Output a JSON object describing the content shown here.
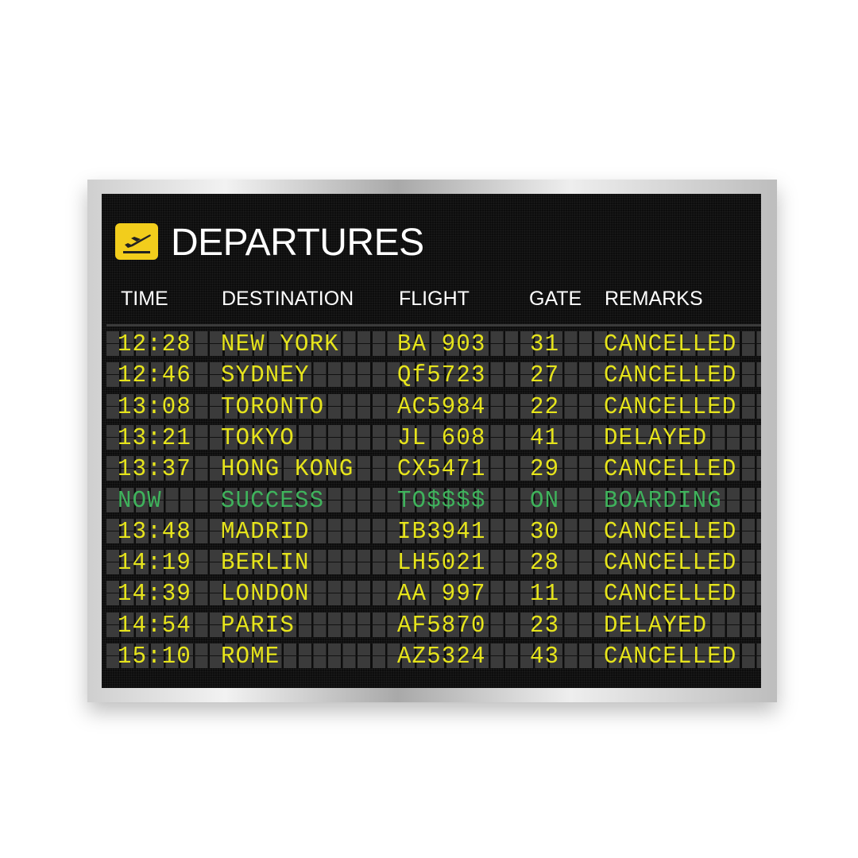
{
  "board": {
    "title": "DEPARTURES",
    "icon": "airplane-departure-icon",
    "columns": [
      "TIME",
      "DESTINATION",
      "FLIGHT",
      "GATE",
      "REMARKS"
    ],
    "colors": {
      "text_yellow": "#e6e41c",
      "text_green": "#3fb35c",
      "logo": "#f2cd1c"
    },
    "rows": [
      {
        "time": "12:28",
        "destination": "NEW YORK",
        "flight": "BA 903",
        "gate": "31",
        "remarks": "CANCELLED"
      },
      {
        "time": "12:46",
        "destination": "SYDNEY",
        "flight": "Qf5723",
        "gate": "27",
        "remarks": "CANCELLED"
      },
      {
        "time": "13:08",
        "destination": "TORONTO",
        "flight": "AC5984",
        "gate": "22",
        "remarks": "CANCELLED"
      },
      {
        "time": "13:21",
        "destination": "TOKYO",
        "flight": "JL 608",
        "gate": "41",
        "remarks": "DELAYED"
      },
      {
        "time": "13:37",
        "destination": "HONG KONG",
        "flight": "CX5471",
        "gate": "29",
        "remarks": "CANCELLED"
      },
      {
        "time": "NOW",
        "destination": "SUCCESS",
        "flight": "TO$$$$",
        "gate": "ON",
        "remarks": "BOARDING",
        "highlight": true
      },
      {
        "time": "13:48",
        "destination": "MADRID",
        "flight": "IB3941",
        "gate": "30",
        "remarks": "CANCELLED"
      },
      {
        "time": "14:19",
        "destination": "BERLIN",
        "flight": "LH5021",
        "gate": "28",
        "remarks": "CANCELLED"
      },
      {
        "time": "14:39",
        "destination": "LONDON",
        "flight": "AA 997",
        "gate": "11",
        "remarks": "CANCELLED"
      },
      {
        "time": "14:54",
        "destination": "PARIS",
        "flight": "AF5870",
        "gate": "23",
        "remarks": "DELAYED"
      },
      {
        "time": "15:10",
        "destination": "ROME",
        "flight": "AZ5324",
        "gate": "43",
        "remarks": "CANCELLED"
      }
    ]
  }
}
